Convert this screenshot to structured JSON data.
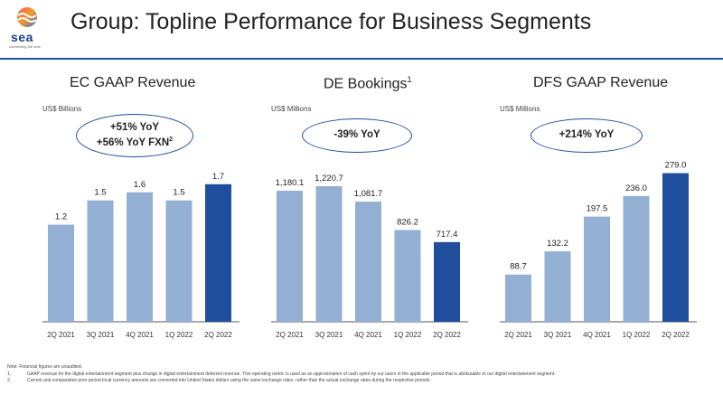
{
  "logo": {
    "text": "sea",
    "tagline": "connecting the dots"
  },
  "title": "Group: Topline Performance for Business Segments",
  "chart_data": [
    {
      "type": "bar",
      "title": "EC GAAP Revenue",
      "title_sup": "",
      "units": "US$ Billions",
      "callout_lines": [
        "+51% YoY",
        "+56% YoY FXN"
      ],
      "callout_sup": "2",
      "categories": [
        "2Q 2021",
        "3Q 2021",
        "4Q 2021",
        "1Q 2022",
        "2Q 2022"
      ],
      "values": [
        1.2,
        1.5,
        1.6,
        1.5,
        1.7
      ],
      "labels": [
        "1.2",
        "1.5",
        "1.6",
        "1.5",
        "1.7"
      ],
      "ylim": [
        0,
        2.1
      ]
    },
    {
      "type": "bar",
      "title": "DE Bookings",
      "title_sup": "1",
      "units": "US$ Millions",
      "callout_lines": [
        "-39% YoY"
      ],
      "callout_sup": "",
      "categories": [
        "2Q 2021",
        "3Q 2021",
        "4Q 2021",
        "1Q 2022",
        "2Q 2022"
      ],
      "values": [
        1180.1,
        1220.7,
        1081.7,
        826.2,
        717.4
      ],
      "labels": [
        "1,180.1",
        "1,220.7",
        "1,081.7",
        "826.2",
        "717.4"
      ],
      "ylim": [
        0,
        1530
      ]
    },
    {
      "type": "bar",
      "title": "DFS GAAP Revenue",
      "title_sup": "",
      "units": "US$ Millions",
      "callout_lines": [
        "+214% YoY"
      ],
      "callout_sup": "",
      "categories": [
        "2Q 2021",
        "3Q 2021",
        "4Q 2021",
        "1Q 2022",
        "2Q 2022"
      ],
      "values": [
        88.7,
        132.2,
        197.5,
        236.0,
        279.0
      ],
      "labels": [
        "88.7",
        "132.2",
        "197.5",
        "236.0",
        "279.0"
      ],
      "ylim": [
        0,
        319
      ]
    }
  ],
  "colors": {
    "bar": "#94afd4",
    "bar_highlight": "#1f4e9c",
    "axis": "#555555"
  },
  "notes": {
    "header": "Note: Financial figures are unaudited.",
    "items": [
      {
        "num": "1.",
        "text": "GAAP revenue for the digital entertainment segment plus change in digital entertainment deferred revenue. This operating metric is used as an approximation of cash spent by our users in the applicable period that is attributable to our digital entertainment segment."
      },
      {
        "num": "2.",
        "text": "Current and comparative prior period local currency amounts are converted into United States dollars using the same exchange rates, rather than the actual exchange rates during the respective periods."
      }
    ]
  }
}
